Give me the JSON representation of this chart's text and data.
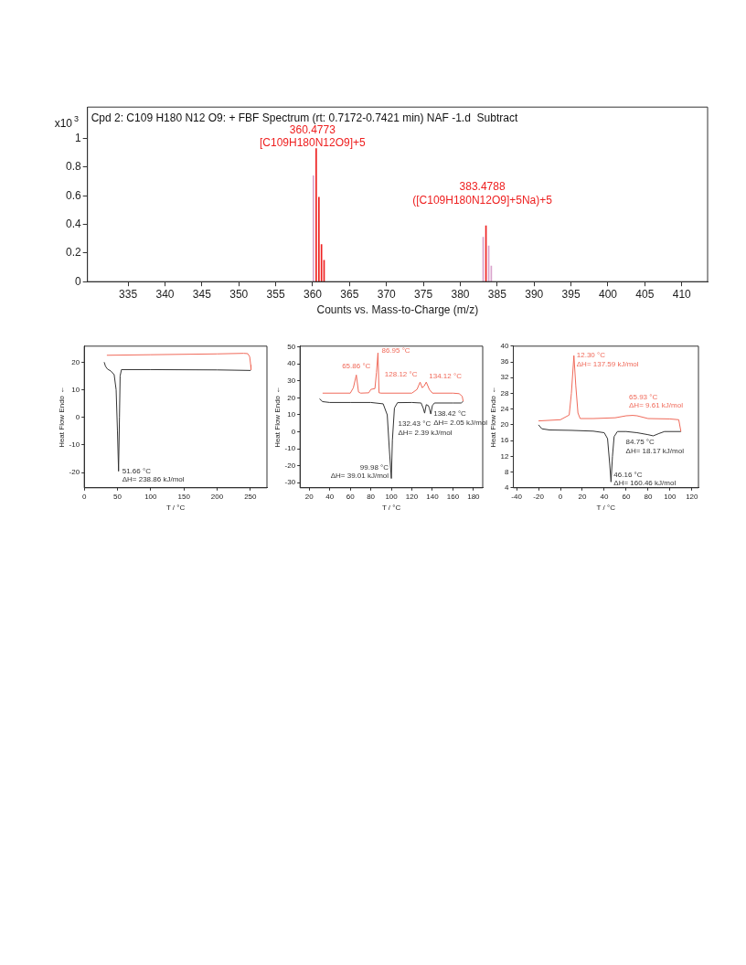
{
  "chart_data": [
    {
      "type": "bar",
      "title": "Cpd 2: C109 H180 N12 O9: + FBF Spectrum (rt: 0.7172-0.7421 min) NAF -1.d  Subtract",
      "xlabel": "Counts vs. Mass-to-Charge (m/z)",
      "ylabel": "x10$^{3}$",
      "xlim": [
        329.5,
        413.5
      ],
      "ylim": [
        0,
        1.22
      ],
      "xticks": [
        335,
        340,
        345,
        350,
        355,
        360,
        365,
        370,
        375,
        380,
        385,
        390,
        395,
        400,
        405,
        410
      ],
      "yticks": [
        0,
        0.2,
        0.4,
        0.6,
        0.8,
        1
      ],
      "series": [
        {
          "color": "#d9a3cc",
          "x": [
            360.1,
            383.1,
            383.85,
            384.2
          ],
          "values": [
            0.74,
            0.31,
            0.25,
            0.11
          ]
        },
        {
          "color": "#ee2020",
          "x": [
            360.48,
            360.85,
            361.2,
            361.55,
            383.48
          ],
          "values": [
            0.93,
            0.59,
            0.26,
            0.15,
            0.39
          ]
        }
      ],
      "annotations": [
        {
          "text": "360.4773\n[C109H180N12O9]+5",
          "x": 360.48,
          "y": 0.93
        },
        {
          "text": "383.4788\n([C109H180N12O9]+5Na)+5",
          "x": 383.48,
          "y": 0.39
        }
      ]
    },
    {
      "type": "line",
      "xlabel": "T / °C",
      "ylabel": "Heat Flow Endo ←",
      "xlim": [
        0,
        275
      ],
      "ylim": [
        -25.5,
        25.8
      ],
      "xticks": [
        0,
        50,
        100,
        150,
        200,
        250
      ],
      "yticks": [
        -20,
        -10,
        0,
        10,
        20
      ],
      "series": [
        {
          "color": "#f06a5a",
          "x": [
            34,
            100,
            200,
            240,
            246,
            249,
            250.5,
            251
          ],
          "values": [
            22.5,
            22.7,
            23.0,
            23.2,
            23.1,
            22,
            19,
            17.2
          ]
        },
        {
          "color": "#333333",
          "x": [
            30,
            32,
            35,
            40,
            45,
            48,
            50,
            51.66,
            53,
            54,
            56,
            100,
            200,
            250.5
          ],
          "values": [
            20,
            18.5,
            17.5,
            16.8,
            15.5,
            10,
            -5,
            -19.5,
            0,
            15,
            17.3,
            17.3,
            17.2,
            17.0
          ]
        }
      ],
      "annotations": [
        {
          "text": "51.66 °C\nΔH= 238.86 kJ/mol",
          "x": 51.66,
          "y": -19.5
        }
      ]
    },
    {
      "type": "line",
      "xlabel": "T / °C",
      "ylabel": "Heat Flow Endo ←",
      "xlim": [
        11,
        189
      ],
      "ylim": [
        -33,
        50.5
      ],
      "xticks": [
        20,
        40,
        60,
        80,
        100,
        120,
        140,
        160,
        180
      ],
      "yticks": [
        -30,
        -20,
        -10,
        0,
        10,
        20,
        30,
        40,
        50
      ],
      "series": [
        {
          "color": "#f06a5a",
          "x": [
            33,
            60,
            63,
            65.86,
            68,
            70,
            78,
            80,
            84,
            85.5,
            86.95,
            88,
            90,
            120,
            125,
            128,
            130,
            132,
            134,
            137,
            140,
            160,
            166,
            169,
            170
          ],
          "values": [
            22.8,
            22.8,
            26,
            33.5,
            23.5,
            22.8,
            23,
            25,
            25.5,
            35,
            46.5,
            23,
            22.8,
            22.8,
            25,
            29.3,
            26,
            27,
            29.3,
            25,
            22.8,
            22.8,
            22.5,
            21,
            18
          ]
        },
        {
          "color": "#333333",
          "x": [
            30,
            33,
            40,
            60,
            80,
            92,
            96,
            98,
            99.98,
            101,
            103,
            106,
            120,
            129,
            131,
            132.43,
            134,
            136,
            137,
            138.42,
            140,
            142,
            160,
            168,
            170
          ],
          "values": [
            19.5,
            17.8,
            17.3,
            17.3,
            17.3,
            16.5,
            10,
            -10,
            -27.5,
            -5,
            14,
            17.2,
            17.3,
            17,
            14,
            11,
            16,
            15.5,
            14,
            10.5,
            15.5,
            17,
            17,
            17,
            18
          ]
        }
      ],
      "annotations": [
        {
          "text": "65.86 °C",
          "x": 65.86,
          "y": 33.5
        },
        {
          "text": "86.95 °C",
          "x": 86.95,
          "y": 46.5
        },
        {
          "text": "128.12 °C",
          "x": 128,
          "y": 29.3
        },
        {
          "text": "134.12 °C",
          "x": 134,
          "y": 29.3
        },
        {
          "text": "132.43 °C\nΔH= 2.39 kJ/mol",
          "x": 132.43,
          "y": 11
        },
        {
          "text": "138.42 °C\nΔH= 2.05 kJ/mol",
          "x": 138.42,
          "y": 10.5
        },
        {
          "text": "99.98 °C\nΔH= 39.01 kJ/mol",
          "x": 99.98,
          "y": -27.5
        }
      ]
    },
    {
      "type": "line",
      "xlabel": "T / °C",
      "ylabel": "Heat Flow Endo ←",
      "xlim": [
        -43,
        126
      ],
      "ylim": [
        4,
        40
      ],
      "xticks": [
        -40,
        -20,
        0,
        20,
        40,
        60,
        80,
        100,
        120
      ],
      "yticks": [
        4,
        8,
        12,
        16,
        20,
        24,
        28,
        32,
        36,
        40
      ],
      "series": [
        {
          "color": "#f06a5a",
          "x": [
            -20,
            0,
            8,
            10,
            12.3,
            14,
            16,
            18,
            30,
            50,
            60,
            65.93,
            70,
            80,
            100,
            108,
            110
          ],
          "values": [
            21,
            21.3,
            22.5,
            28,
            37.6,
            30,
            23,
            21.6,
            21.6,
            21.8,
            22.3,
            22.4,
            22.3,
            21.6,
            21.5,
            21.3,
            18.3
          ]
        },
        {
          "color": "#333333",
          "x": [
            -20,
            -17,
            -10,
            10,
            30,
            40,
            43,
            45,
            46.16,
            47.5,
            49,
            52,
            60,
            70,
            80,
            84.75,
            90,
            95,
            110
          ],
          "values": [
            20,
            19,
            18.7,
            18.6,
            18.4,
            18,
            16.5,
            10,
            5.5,
            12,
            17,
            18.3,
            18.3,
            18,
            17.5,
            17.2,
            17.8,
            18.3,
            18.3
          ]
        }
      ],
      "annotations": [
        {
          "text": "12.30 °C\nΔH= 137.59 kJ/mol",
          "x": 12.3,
          "y": 37.6
        },
        {
          "text": "65.93 °C\nΔH= 9.61 kJ/mol",
          "x": 65.93,
          "y": 22.4
        },
        {
          "text": "84.75 °C\nΔH= 18.17 kJ/mol",
          "x": 84.75,
          "y": 17.2
        },
        {
          "text": "46.16 °C\nΔH= 160.46 kJ/mol",
          "x": 46.16,
          "y": 5.5
        }
      ]
    }
  ]
}
